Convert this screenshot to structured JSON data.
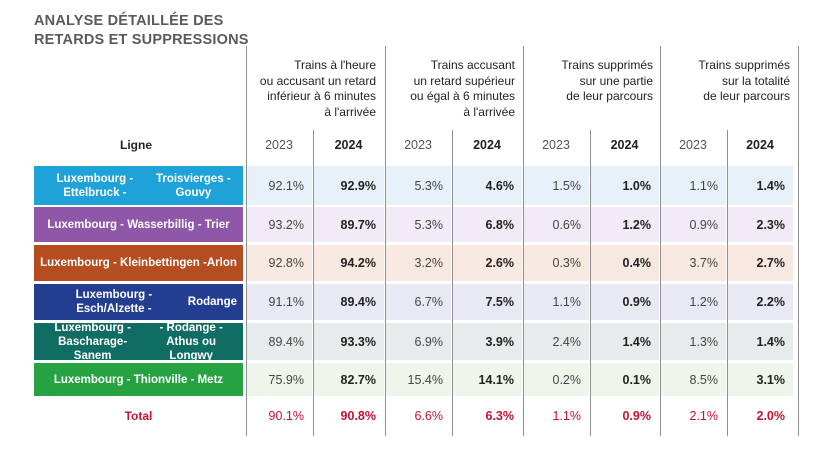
{
  "title": [
    "ANALYSE DÉTAILLÉE DES",
    "RETARDS ET SUPPRESSIONS"
  ],
  "column_groups": [
    [
      "Trains à l'heure",
      "ou accusant un retard",
      "inférieur à 6 minutes",
      "à l'arrivée"
    ],
    [
      "Trains accusant",
      "un retard supérieur",
      "ou égal à 6 minutes",
      "à l'arrivée"
    ],
    [
      "Trains supprimés",
      "sur une partie",
      "de leur parcours"
    ],
    [
      "Trains supprimés",
      "sur la totalité",
      "de leur parcours"
    ]
  ],
  "ligne_header": "Ligne",
  "years": [
    "2023",
    "2024"
  ],
  "rows": [
    {
      "label": [
        "Luxembourg - Ettelbruck -",
        "Troisvierges - Gouvy"
      ],
      "color": "#1fa2d8",
      "tint": "#e8f1fa",
      "values": [
        "92.1%",
        "92.9%",
        "5.3%",
        "4.6%",
        "1.5%",
        "1.0%",
        "1.1%",
        "1.4%"
      ]
    },
    {
      "label": [
        "Luxembourg - Wasserbillig - Trier"
      ],
      "color": "#8e57a8",
      "tint": "#f0ebf6",
      "values": [
        "93.2%",
        "89.7%",
        "5.3%",
        "6.8%",
        "0.6%",
        "1.2%",
        "0.9%",
        "2.3%"
      ]
    },
    {
      "label": [
        "Luxembourg - Kleinbettingen -",
        "Arlon"
      ],
      "color": "#b54d20",
      "tint": "#f7e9e1",
      "values": [
        "92.8%",
        "94.2%",
        "3.2%",
        "2.6%",
        "0.3%",
        "0.4%",
        "3.7%",
        "2.7%"
      ]
    },
    {
      "label": [
        "Luxembourg - Esch/Alzette -",
        "Rodange"
      ],
      "color": "#233e91",
      "tint": "#e9e9f3",
      "values": [
        "91.1%",
        "89.4%",
        "6.7%",
        "7.5%",
        "1.1%",
        "0.9%",
        "1.2%",
        "2.2%"
      ]
    },
    {
      "label": [
        "Luxembourg - Bascharage-Sanem",
        "- Rodange - Athus ou Longwy"
      ],
      "color": "#0f6d63",
      "tint": "#e6eceb",
      "values": [
        "89.4%",
        "93.3%",
        "6.9%",
        "3.9%",
        "2.4%",
        "1.4%",
        "1.3%",
        "1.4%"
      ]
    },
    {
      "label": [
        "Luxembourg - Thionville - Metz"
      ],
      "color": "#27a243",
      "tint": "#eef6ec",
      "values": [
        "75.9%",
        "82.7%",
        "15.4%",
        "14.1%",
        "0.2%",
        "0.1%",
        "8.5%",
        "3.1%"
      ]
    }
  ],
  "total": {
    "label": "Total",
    "values": [
      "90.1%",
      "90.8%",
      "6.6%",
      "6.3%",
      "1.1%",
      "0.9%",
      "2.1%",
      "2.0%"
    ]
  }
}
